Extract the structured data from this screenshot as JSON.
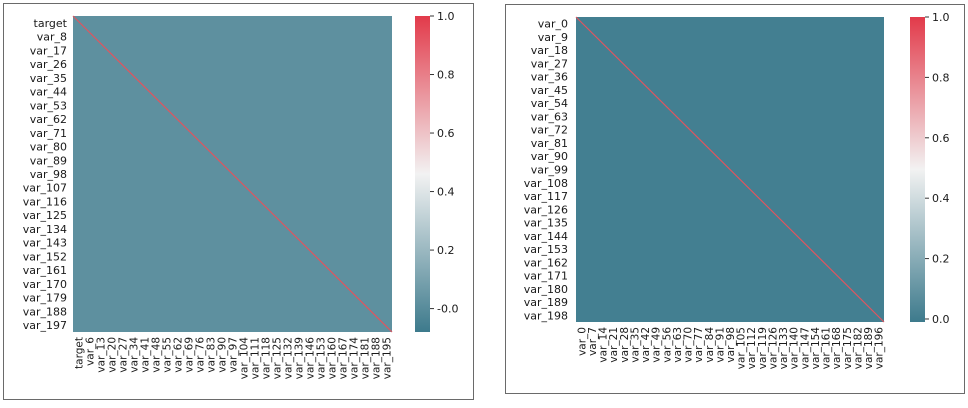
{
  "chart_data": [
    {
      "type": "heatmap",
      "title": "",
      "xlabel": "",
      "ylabel": "",
      "x_tick_labels": [
        "target",
        "var_6",
        "var_13",
        "var_20",
        "var_27",
        "var_34",
        "var_41",
        "var_48",
        "var_55",
        "var_62",
        "var_69",
        "var_76",
        "var_83",
        "var_90",
        "var_97",
        "var_104",
        "var_111",
        "var_118",
        "var_125",
        "var_132",
        "var_139",
        "var_146",
        "var_153",
        "var_160",
        "var_167",
        "var_174",
        "var_181",
        "var_188",
        "var_195"
      ],
      "y_tick_labels": [
        "target",
        "var_8",
        "var_17",
        "var_26",
        "var_35",
        "var_44",
        "var_53",
        "var_62",
        "var_71",
        "var_80",
        "var_89",
        "var_98",
        "var_107",
        "var_116",
        "var_125",
        "var_134",
        "var_143",
        "var_152",
        "var_161",
        "var_170",
        "var_179",
        "var_188",
        "var_197"
      ],
      "colorbar": {
        "ticks": [
          1.0,
          0.8,
          0.6,
          0.4,
          0.2,
          0.0
        ],
        "tick_labels": [
          "1.0",
          "0.8",
          "0.6",
          "0.4",
          "0.2",
          "-0.0"
        ],
        "range": [
          -0.08,
          1.0
        ]
      },
      "off_diagonal_value": 0.0,
      "diagonal_value": 1.0,
      "colors": {
        "low": "#3d7a8c",
        "mid": "#f2f2f2",
        "high": "#e23a4a",
        "cell": "#5e909f",
        "diagonal": "#e0555f"
      }
    },
    {
      "type": "heatmap",
      "title": "",
      "xlabel": "",
      "ylabel": "",
      "x_tick_labels": [
        "var_0",
        "var_7",
        "var_14",
        "var_21",
        "var_28",
        "var_35",
        "var_42",
        "var_49",
        "var_56",
        "var_63",
        "var_70",
        "var_77",
        "var_84",
        "var_91",
        "var_98",
        "var_105",
        "var_112",
        "var_119",
        "var_126",
        "var_133",
        "var_140",
        "var_147",
        "var_154",
        "var_161",
        "var_168",
        "var_175",
        "var_182",
        "var_189",
        "var_196"
      ],
      "y_tick_labels": [
        "var_0",
        "var_9",
        "var_18",
        "var_27",
        "var_36",
        "var_45",
        "var_54",
        "var_63",
        "var_72",
        "var_81",
        "var_90",
        "var_99",
        "var_108",
        "var_117",
        "var_126",
        "var_135",
        "var_144",
        "var_153",
        "var_162",
        "var_171",
        "var_180",
        "var_189",
        "var_198"
      ],
      "colorbar": {
        "ticks": [
          1.0,
          0.8,
          0.6,
          0.4,
          0.2,
          0.0
        ],
        "tick_labels": [
          "1.0",
          "0.8",
          "0.6",
          "0.4",
          "0.2",
          "0.0"
        ],
        "range": [
          -0.01,
          1.0
        ]
      },
      "off_diagonal_value": 0.0,
      "diagonal_value": 1.0,
      "colors": {
        "low": "#3d7a8c",
        "mid": "#f2f2f2",
        "high": "#e23a4a",
        "cell": "#437f91",
        "diagonal": "#e0555f"
      }
    }
  ]
}
